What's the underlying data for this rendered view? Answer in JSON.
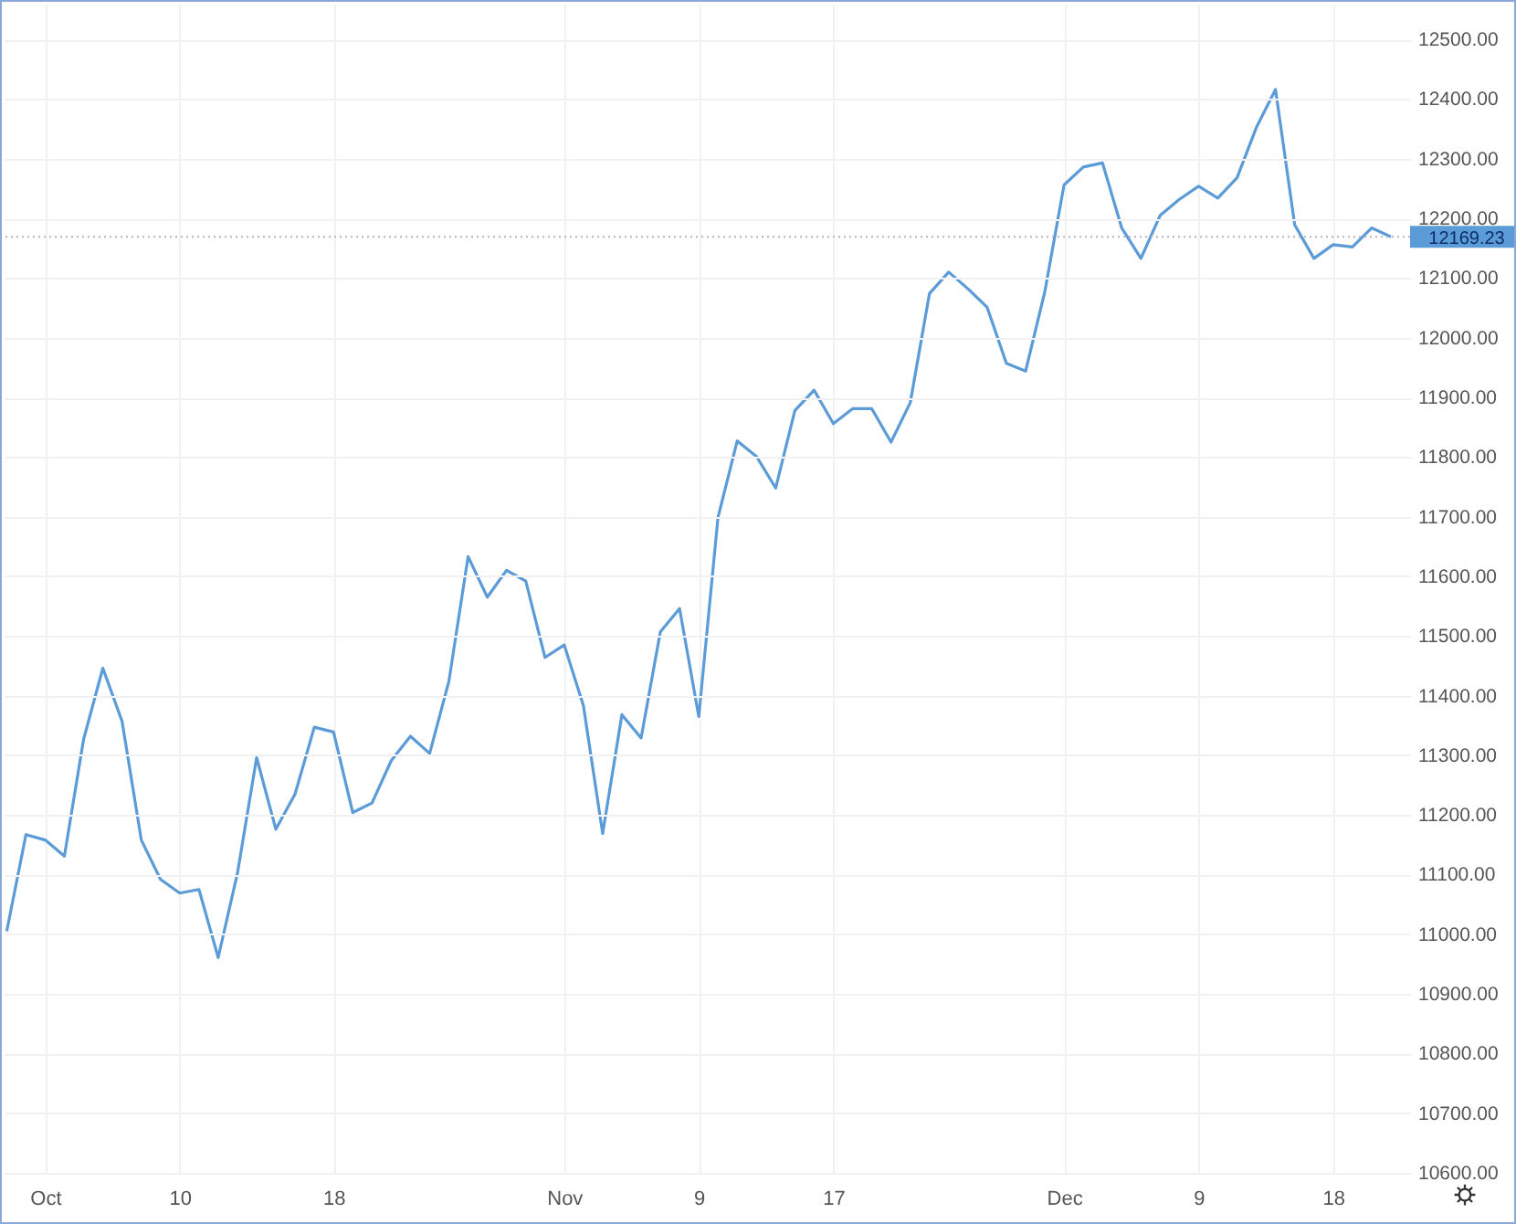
{
  "chart_data": {
    "type": "line",
    "categories": [
      null,
      null,
      "Oct",
      null,
      null,
      null,
      null,
      null,
      null,
      "10",
      null,
      null,
      null,
      null,
      null,
      null,
      null,
      "18",
      null,
      null,
      null,
      null,
      null,
      null,
      null,
      null,
      null,
      null,
      null,
      "Nov",
      null,
      null,
      null,
      null,
      null,
      null,
      "9",
      null,
      null,
      null,
      null,
      null,
      null,
      "17",
      null,
      null,
      null,
      null,
      null,
      null,
      null,
      null,
      null,
      null,
      null,
      "Dec",
      null,
      null,
      null,
      null,
      null,
      null,
      "9",
      null,
      null,
      null,
      null,
      null,
      null,
      "18",
      null,
      null,
      null
    ],
    "series": [
      {
        "color": "#5b9bd8",
        "values": [
          11005,
          11167,
          11158,
          11131,
          11327,
          11446,
          11357,
          11158,
          11092,
          11069,
          11075,
          10961,
          11102,
          11296,
          11176,
          11235,
          11347,
          11339,
          11204,
          11220,
          11291,
          11332,
          11303,
          11424,
          11633,
          11565,
          11610,
          11592,
          11464,
          11485,
          11383,
          11169,
          11368,
          11329,
          11507,
          11546,
          11365,
          11699,
          11827,
          11801,
          11748,
          11878,
          11912,
          11856,
          11881,
          11881,
          11825,
          11891,
          12074,
          12110,
          12082,
          12051,
          11957,
          11944,
          12077,
          12256,
          12286,
          12293,
          12184,
          12133,
          12205,
          12232,
          12254,
          12234,
          12268,
          12352,
          12416,
          12189,
          12133,
          12156,
          12152,
          12184,
          12169.23
        ]
      }
    ],
    "ylim": [
      10600,
      12560
    ],
    "yticks": [
      {
        "value": 10600,
        "label": "10600.00"
      },
      {
        "value": 10700,
        "label": "10700.00"
      },
      {
        "value": 10800,
        "label": "10800.00"
      },
      {
        "value": 10900,
        "label": "10900.00"
      },
      {
        "value": 11000,
        "label": "11000.00"
      },
      {
        "value": 11100,
        "label": "11100.00"
      },
      {
        "value": 11200,
        "label": "11200.00"
      },
      {
        "value": 11300,
        "label": "11300.00"
      },
      {
        "value": 11400,
        "label": "11400.00"
      },
      {
        "value": 11500,
        "label": "11500.00"
      },
      {
        "value": 11600,
        "label": "11600.00"
      },
      {
        "value": 11700,
        "label": "11700.00"
      },
      {
        "value": 11800,
        "label": "11800.00"
      },
      {
        "value": 11900,
        "label": "11900.00"
      },
      {
        "value": 12000,
        "label": "12000.00"
      },
      {
        "value": 12100,
        "label": "12100.00"
      },
      {
        "value": 12200,
        "label": "12200.00"
      },
      {
        "value": 12300,
        "label": "12300.00"
      },
      {
        "value": 12400,
        "label": "12400.00"
      },
      {
        "value": 12500,
        "label": "12500.00"
      }
    ],
    "ref_lines": [
      {
        "axis": "y",
        "value": 12169.23,
        "label": "12169.23",
        "color": "#b4b4b4",
        "line_style": "dotted"
      }
    ],
    "grid": true,
    "marker": "none",
    "line_style": "solid"
  }
}
